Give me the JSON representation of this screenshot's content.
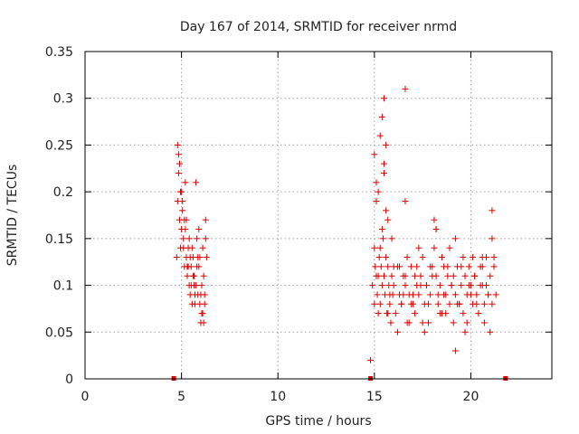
{
  "chart_data": {
    "type": "scatter",
    "title": "Day 167 of 2014, SRMTID for receiver nrmd",
    "xlabel": "GPS time / hours",
    "ylabel": "SRMTID / TECUs",
    "xlim": [
      0,
      24.2
    ],
    "ylim": [
      0,
      0.35
    ],
    "xticks": [
      0,
      5,
      10,
      15,
      20
    ],
    "xtick_labels": [
      "0",
      "5",
      "10",
      "15",
      "20"
    ],
    "yticks": [
      0,
      0.05,
      0.1,
      0.15,
      0.2,
      0.25,
      0.3,
      0.35
    ],
    "ytick_labels": [
      "0",
      "0.05",
      "0.1",
      "0.15",
      "0.2",
      "0.25",
      "0.3",
      "0.35"
    ],
    "grid": true,
    "marker": "+",
    "series_color": "#dd0000",
    "baseline_markers_x": [
      4.6,
      14.8,
      21.8
    ],
    "series": [
      {
        "name": "SRMTID",
        "x": [
          4.75,
          4.8,
          4.85,
          4.9,
          4.95,
          5.0,
          5.05,
          5.1,
          5.15,
          5.2,
          5.25,
          5.3,
          5.35,
          5.4,
          5.45,
          5.5,
          5.55,
          5.6,
          5.65,
          5.7,
          5.75,
          5.8,
          5.85,
          5.9,
          5.95,
          6.0,
          6.05,
          6.1,
          6.15,
          6.2,
          6.25,
          6.3,
          4.8,
          4.9,
          5.0,
          5.1,
          5.2,
          5.3,
          5.4,
          5.5,
          5.6,
          5.7,
          5.8,
          5.9,
          6.0,
          6.1,
          6.2,
          4.85,
          5.05,
          5.25,
          5.45,
          5.65,
          5.85,
          6.05,
          6.25,
          4.95,
          5.15,
          5.35,
          5.55,
          5.75,
          5.95,
          6.15,
          14.8,
          14.9,
          15.0,
          15.05,
          15.1,
          15.15,
          15.2,
          15.25,
          15.3,
          15.35,
          15.4,
          15.45,
          15.5,
          15.55,
          15.6,
          15.65,
          15.7,
          15.75,
          15.8,
          15.85,
          15.9,
          15.95,
          16.0,
          16.1,
          16.2,
          16.3,
          16.4,
          16.5,
          16.6,
          16.7,
          16.8,
          16.9,
          17.0,
          17.1,
          17.2,
          17.3,
          17.4,
          17.5,
          17.6,
          17.7,
          17.8,
          17.9,
          18.0,
          18.1,
          18.2,
          18.3,
          18.4,
          18.5,
          18.6,
          18.7,
          18.8,
          18.9,
          19.0,
          19.1,
          19.2,
          19.3,
          19.4,
          19.5,
          19.6,
          19.7,
          19.8,
          19.9,
          20.0,
          20.1,
          20.2,
          20.3,
          20.4,
          20.5,
          20.6,
          20.7,
          20.8,
          20.9,
          21.0,
          21.1,
          21.2,
          21.3,
          15.0,
          15.2,
          15.4,
          15.6,
          15.8,
          16.0,
          16.2,
          16.4,
          16.6,
          16.8,
          17.0,
          17.2,
          17.4,
          17.6,
          17.8,
          18.0,
          18.2,
          18.4,
          18.6,
          18.8,
          19.0,
          19.2,
          19.4,
          19.6,
          19.8,
          20.0,
          20.2,
          20.4,
          20.6,
          20.8,
          21.0,
          21.2,
          15.1,
          15.3,
          15.5,
          15.7,
          15.9,
          16.3,
          16.5,
          16.7,
          16.9,
          17.1,
          17.3,
          17.5,
          17.7,
          17.9,
          18.1,
          18.3,
          18.5,
          18.7,
          18.9,
          19.1,
          19.3,
          19.5,
          19.7,
          19.9,
          20.1,
          20.3,
          20.5,
          20.7,
          20.9,
          21.1,
          16.6,
          15.5,
          15.4,
          15.3,
          15.2,
          15.6,
          16.6,
          15.1,
          15.0,
          15.5,
          15.7,
          18.2,
          21.1,
          20.6,
          19.2
        ],
        "y": [
          0.13,
          0.25,
          0.22,
          0.17,
          0.14,
          0.2,
          0.18,
          0.15,
          0.12,
          0.16,
          0.13,
          0.11,
          0.14,
          0.1,
          0.09,
          0.12,
          0.08,
          0.11,
          0.1,
          0.09,
          0.21,
          0.15,
          0.13,
          0.12,
          0.08,
          0.06,
          0.1,
          0.07,
          0.11,
          0.09,
          0.17,
          0.13,
          0.19,
          0.23,
          0.16,
          0.14,
          0.21,
          0.12,
          0.15,
          0.1,
          0.13,
          0.08,
          0.12,
          0.16,
          0.09,
          0.14,
          0.08,
          0.24,
          0.19,
          0.17,
          0.13,
          0.11,
          0.09,
          0.07,
          0.15,
          0.2,
          0.17,
          0.12,
          0.14,
          0.1,
          0.13,
          0.06,
          0.02,
          0.1,
          0.08,
          0.12,
          0.11,
          0.09,
          0.07,
          0.13,
          0.08,
          0.12,
          0.1,
          0.15,
          0.11,
          0.09,
          0.13,
          0.07,
          0.12,
          0.1,
          0.08,
          0.06,
          0.11,
          0.09,
          0.1,
          0.07,
          0.12,
          0.09,
          0.08,
          0.11,
          0.1,
          0.06,
          0.09,
          0.12,
          0.08,
          0.07,
          0.1,
          0.09,
          0.11,
          0.13,
          0.08,
          0.1,
          0.06,
          0.09,
          0.12,
          0.14,
          0.11,
          0.08,
          0.1,
          0.07,
          0.12,
          0.09,
          0.11,
          0.08,
          0.1,
          0.06,
          0.09,
          0.12,
          0.08,
          0.1,
          0.07,
          0.11,
          0.09,
          0.12,
          0.1,
          0.08,
          0.11,
          0.09,
          0.07,
          0.1,
          0.12,
          0.08,
          0.1,
          0.09,
          0.11,
          0.08,
          0.13,
          0.09,
          0.14,
          0.11,
          0.16,
          0.18,
          0.09,
          0.12,
          0.05,
          0.08,
          0.11,
          0.06,
          0.09,
          0.12,
          0.1,
          0.05,
          0.08,
          0.11,
          0.16,
          0.07,
          0.09,
          0.12,
          0.1,
          0.15,
          0.08,
          0.13,
          0.06,
          0.09,
          0.11,
          0.07,
          0.1,
          0.13,
          0.05,
          0.12,
          0.19,
          0.14,
          0.22,
          0.07,
          0.15,
          0.12,
          0.09,
          0.13,
          0.08,
          0.11,
          0.14,
          0.06,
          0.1,
          0.12,
          0.17,
          0.09,
          0.13,
          0.07,
          0.14,
          0.11,
          0.08,
          0.12,
          0.05,
          0.1,
          0.13,
          0.08,
          0.12,
          0.06,
          0.09,
          0.15,
          0.31,
          0.3,
          0.28,
          0.26,
          0.2,
          0.25,
          0.19,
          0.21,
          0.24,
          0.23,
          0.17,
          0.16,
          0.18,
          0.13,
          0.03
        ]
      }
    ]
  }
}
